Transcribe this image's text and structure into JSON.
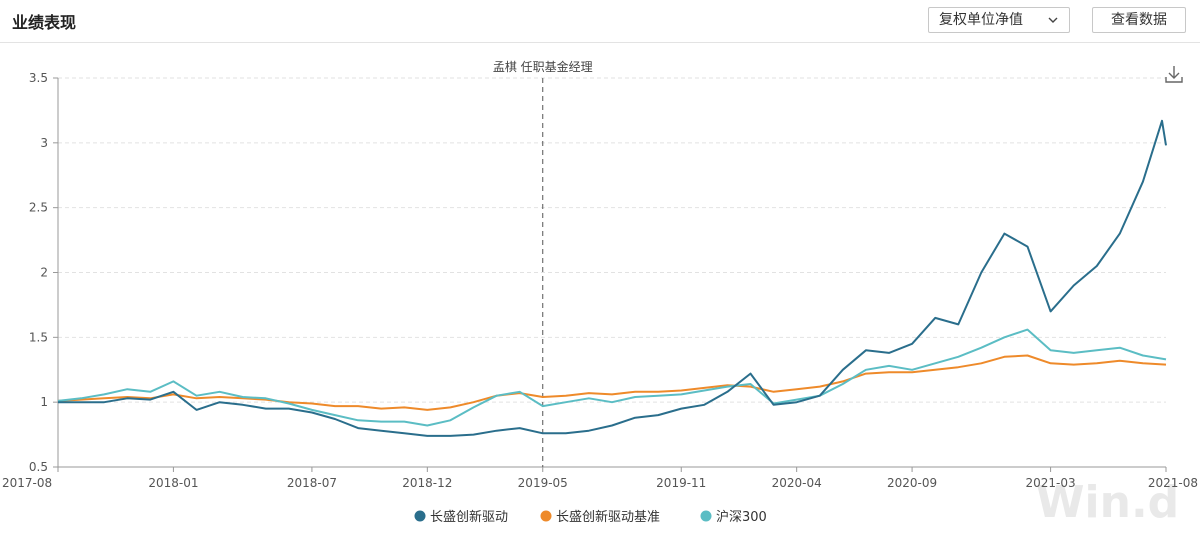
{
  "header": {
    "title": "业绩表现",
    "nav_select_label": "复权单位净值",
    "view_data_label": "查看数据"
  },
  "annotation": "孟棋 任职基金经理",
  "watermark": "Win.d",
  "icons": {
    "download": "download-icon",
    "chevron": "chevron-down-icon"
  },
  "chart_data": {
    "type": "line",
    "title": "",
    "xlabel": "",
    "ylabel": "",
    "ylim": [
      0.5,
      3.5
    ],
    "yticks": [
      "0.5",
      "1",
      "1.5",
      "2",
      "2.5",
      "3",
      "3.5"
    ],
    "xticks": [
      "2017-08",
      "2018-01",
      "2018-07",
      "2018-12",
      "2019-05",
      "2019-11",
      "2020-04",
      "2020-09",
      "2021-03",
      "2021-08"
    ],
    "xlim": [
      "2017-08",
      "2021-08"
    ],
    "grid": "horizontal dashed",
    "legend_position": "bottom",
    "vertical_marker": {
      "x": "2019-05",
      "label": "孟棋 任职基金经理"
    },
    "series": [
      {
        "name": "长盛创新驱动",
        "color": "#2a6e8c",
        "points": [
          [
            "2017-08",
            1.0
          ],
          [
            "2017-09",
            1.0
          ],
          [
            "2017-10",
            1.0
          ],
          [
            "2017-11",
            1.03
          ],
          [
            "2017-12",
            1.02
          ],
          [
            "2018-01",
            1.08
          ],
          [
            "2018-02",
            0.94
          ],
          [
            "2018-03",
            1.0
          ],
          [
            "2018-04",
            0.98
          ],
          [
            "2018-05",
            0.95
          ],
          [
            "2018-06",
            0.95
          ],
          [
            "2018-07",
            0.92
          ],
          [
            "2018-08",
            0.87
          ],
          [
            "2018-09",
            0.8
          ],
          [
            "2018-10",
            0.78
          ],
          [
            "2018-11",
            0.76
          ],
          [
            "2018-12",
            0.74
          ],
          [
            "2019-01",
            0.74
          ],
          [
            "2019-02",
            0.75
          ],
          [
            "2019-03",
            0.78
          ],
          [
            "2019-04",
            0.8
          ],
          [
            "2019-05",
            0.76
          ],
          [
            "2019-06",
            0.76
          ],
          [
            "2019-07",
            0.78
          ],
          [
            "2019-08",
            0.82
          ],
          [
            "2019-09",
            0.88
          ],
          [
            "2019-10",
            0.9
          ],
          [
            "2019-11",
            0.95
          ],
          [
            "2019-12",
            0.98
          ],
          [
            "2020-01",
            1.08
          ],
          [
            "2020-02",
            1.22
          ],
          [
            "2020-03",
            0.98
          ],
          [
            "2020-04",
            1.0
          ],
          [
            "2020-05",
            1.05
          ],
          [
            "2020-06",
            1.25
          ],
          [
            "2020-07",
            1.4
          ],
          [
            "2020-08",
            1.38
          ],
          [
            "2020-09",
            1.45
          ],
          [
            "2020-10",
            1.65
          ],
          [
            "2020-11",
            1.6
          ],
          [
            "2020-12",
            2.0
          ],
          [
            "2021-01",
            2.3
          ],
          [
            "2021-02",
            2.2
          ],
          [
            "2021-03",
            1.7
          ],
          [
            "2021-04",
            1.9
          ],
          [
            "2021-05",
            2.05
          ],
          [
            "2021-06",
            2.3
          ],
          [
            "2021-07",
            2.7
          ],
          [
            "2021-08",
            3.17
          ],
          [
            "2021-08",
            2.98
          ]
        ]
      },
      {
        "name": "长盛创新驱动基准",
        "color": "#ee8a2a",
        "points": [
          [
            "2017-08",
            1.01
          ],
          [
            "2017-09",
            1.02
          ],
          [
            "2017-10",
            1.03
          ],
          [
            "2017-11",
            1.04
          ],
          [
            "2017-12",
            1.03
          ],
          [
            "2018-01",
            1.06
          ],
          [
            "2018-02",
            1.03
          ],
          [
            "2018-03",
            1.04
          ],
          [
            "2018-04",
            1.03
          ],
          [
            "2018-05",
            1.02
          ],
          [
            "2018-06",
            1.0
          ],
          [
            "2018-07",
            0.99
          ],
          [
            "2018-08",
            0.97
          ],
          [
            "2018-09",
            0.97
          ],
          [
            "2018-10",
            0.95
          ],
          [
            "2018-11",
            0.96
          ],
          [
            "2018-12",
            0.94
          ],
          [
            "2019-01",
            0.96
          ],
          [
            "2019-02",
            1.0
          ],
          [
            "2019-03",
            1.05
          ],
          [
            "2019-04",
            1.07
          ],
          [
            "2019-05",
            1.04
          ],
          [
            "2019-06",
            1.05
          ],
          [
            "2019-07",
            1.07
          ],
          [
            "2019-08",
            1.06
          ],
          [
            "2019-09",
            1.08
          ],
          [
            "2019-10",
            1.08
          ],
          [
            "2019-11",
            1.09
          ],
          [
            "2019-12",
            1.11
          ],
          [
            "2020-01",
            1.13
          ],
          [
            "2020-02",
            1.12
          ],
          [
            "2020-03",
            1.08
          ],
          [
            "2020-04",
            1.1
          ],
          [
            "2020-05",
            1.12
          ],
          [
            "2020-06",
            1.16
          ],
          [
            "2020-07",
            1.22
          ],
          [
            "2020-08",
            1.23
          ],
          [
            "2020-09",
            1.23
          ],
          [
            "2020-10",
            1.25
          ],
          [
            "2020-11",
            1.27
          ],
          [
            "2020-12",
            1.3
          ],
          [
            "2021-01",
            1.35
          ],
          [
            "2021-02",
            1.36
          ],
          [
            "2021-03",
            1.3
          ],
          [
            "2021-04",
            1.29
          ],
          [
            "2021-05",
            1.3
          ],
          [
            "2021-06",
            1.32
          ],
          [
            "2021-07",
            1.3
          ],
          [
            "2021-08",
            1.29
          ]
        ]
      },
      {
        "name": "沪深300",
        "color": "#5bbdc4",
        "points": [
          [
            "2017-08",
            1.01
          ],
          [
            "2017-09",
            1.03
          ],
          [
            "2017-10",
            1.06
          ],
          [
            "2017-11",
            1.1
          ],
          [
            "2017-12",
            1.08
          ],
          [
            "2018-01",
            1.16
          ],
          [
            "2018-02",
            1.05
          ],
          [
            "2018-03",
            1.08
          ],
          [
            "2018-04",
            1.04
          ],
          [
            "2018-05",
            1.03
          ],
          [
            "2018-06",
            0.99
          ],
          [
            "2018-07",
            0.94
          ],
          [
            "2018-08",
            0.9
          ],
          [
            "2018-09",
            0.86
          ],
          [
            "2018-10",
            0.85
          ],
          [
            "2018-11",
            0.85
          ],
          [
            "2018-12",
            0.82
          ],
          [
            "2019-01",
            0.86
          ],
          [
            "2019-02",
            0.96
          ],
          [
            "2019-03",
            1.05
          ],
          [
            "2019-04",
            1.08
          ],
          [
            "2019-05",
            0.97
          ],
          [
            "2019-06",
            1.0
          ],
          [
            "2019-07",
            1.03
          ],
          [
            "2019-08",
            1.0
          ],
          [
            "2019-09",
            1.04
          ],
          [
            "2019-10",
            1.05
          ],
          [
            "2019-11",
            1.06
          ],
          [
            "2019-12",
            1.09
          ],
          [
            "2020-01",
            1.12
          ],
          [
            "2020-02",
            1.14
          ],
          [
            "2020-03",
            0.99
          ],
          [
            "2020-04",
            1.02
          ],
          [
            "2020-05",
            1.05
          ],
          [
            "2020-06",
            1.14
          ],
          [
            "2020-07",
            1.25
          ],
          [
            "2020-08",
            1.28
          ],
          [
            "2020-09",
            1.25
          ],
          [
            "2020-10",
            1.3
          ],
          [
            "2020-11",
            1.35
          ],
          [
            "2020-12",
            1.42
          ],
          [
            "2021-01",
            1.5
          ],
          [
            "2021-02",
            1.56
          ],
          [
            "2021-03",
            1.4
          ],
          [
            "2021-04",
            1.38
          ],
          [
            "2021-05",
            1.4
          ],
          [
            "2021-06",
            1.42
          ],
          [
            "2021-07",
            1.36
          ],
          [
            "2021-08",
            1.33
          ]
        ]
      }
    ]
  }
}
